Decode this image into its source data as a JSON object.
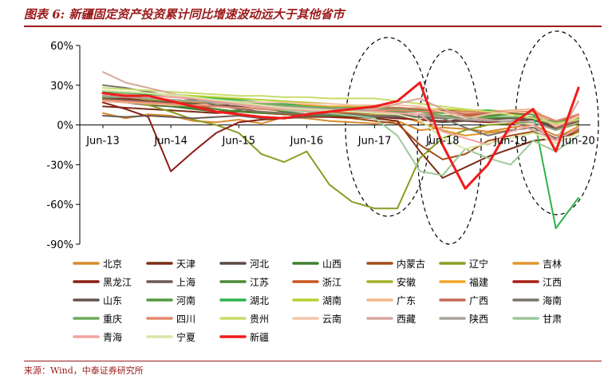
{
  "header": {
    "title": "图表 6:  新疆固定资产投资累计同比增速波动远大于其他省市"
  },
  "footer": {
    "source": "来源：Wind，中泰证券研究所"
  },
  "chart_data": {
    "type": "line",
    "title": "图表 6:  新疆固定资产投资累计同比增速波动远大于其他省市",
    "x_tick_labels": [
      "Jun-13",
      "Jun-14",
      "Jun-15",
      "Jun-16",
      "Jun-17",
      "Jun-18",
      "Jun-19",
      "Jun-20"
    ],
    "y_tick_labels": [
      "60%",
      "30%",
      "0%",
      "-30%",
      "-60%",
      "-90%"
    ],
    "ylim": [
      -90,
      60
    ],
    "y_unit": "%",
    "grid": false,
    "legend_position": "bottom",
    "annotations": [
      {
        "type": "dashed-ellipse",
        "around": "Jun-17"
      },
      {
        "type": "dashed-ellipse",
        "around": "Jun-18"
      },
      {
        "type": "dashed-ellipse",
        "around": "Jun-20"
      }
    ],
    "series": [
      {
        "name": "北京",
        "color": "#d88a2e",
        "values": [
          9,
          5,
          8,
          7,
          3,
          2,
          4,
          1,
          6,
          5,
          3,
          2,
          1,
          3,
          -4,
          -2,
          -3,
          -5,
          -2,
          0,
          -8,
          -4
        ]
      },
      {
        "name": "天津",
        "color": "#7b2d16",
        "values": [
          14,
          13,
          12,
          11,
          10,
          9,
          10,
          10,
          9,
          8,
          8,
          6,
          5,
          3,
          -20,
          -40,
          -32,
          -24,
          -18,
          -12,
          -10,
          -6
        ]
      },
      {
        "name": "河北",
        "color": "#5a4a42",
        "values": [
          18,
          17,
          15,
          14,
          13,
          12,
          10,
          9,
          8,
          8,
          7,
          6,
          6,
          5,
          4,
          2,
          5,
          6,
          5,
          4,
          -3,
          2
        ]
      },
      {
        "name": "山西",
        "color": "#3f7f2f",
        "values": [
          19,
          18,
          16,
          14,
          12,
          10,
          11,
          13,
          10,
          8,
          7,
          6,
          6,
          7,
          6,
          5,
          6,
          7,
          8,
          9,
          -3,
          6
        ]
      },
      {
        "name": "内蒙古",
        "color": "#a44d18",
        "values": [
          22,
          21,
          19,
          18,
          15,
          12,
          10,
          9,
          8,
          7,
          6,
          5,
          3,
          1,
          -15,
          -26,
          -22,
          -12,
          -8,
          -5,
          -10,
          -5
        ]
      },
      {
        "name": "辽宁",
        "color": "#8c9c22",
        "values": [
          20,
          18,
          15,
          10,
          4,
          0,
          -6,
          -22,
          -28,
          -20,
          -45,
          -58,
          -63,
          -63,
          -25,
          -10,
          -4,
          0,
          1,
          2,
          -4,
          1
        ]
      },
      {
        "name": "吉林",
        "color": "#e0952b",
        "values": [
          21,
          20,
          19,
          18,
          17,
          15,
          13,
          12,
          11,
          10,
          10,
          9,
          8,
          7,
          2,
          -4,
          -8,
          -6,
          -4,
          -2,
          -10,
          -1
        ]
      },
      {
        "name": "黑龙江",
        "color": "#8b1d14",
        "values": [
          17,
          12,
          6,
          -35,
          -20,
          -6,
          2,
          4,
          5,
          6,
          6,
          6,
          6,
          5,
          4,
          3,
          3,
          2,
          3,
          4,
          1,
          5
        ]
      },
      {
        "name": "上海",
        "color": "#6b5a52",
        "values": [
          7,
          6,
          7,
          6,
          5,
          6,
          7,
          5,
          5,
          6,
          7,
          7,
          6,
          6,
          6,
          6,
          6,
          5,
          5,
          6,
          2,
          8
        ]
      },
      {
        "name": "江苏",
        "color": "#4b8a37",
        "values": [
          20,
          19,
          17,
          15,
          13,
          12,
          10,
          9,
          9,
          8,
          7,
          7,
          7,
          7,
          6,
          5,
          5,
          5,
          5,
          4,
          0,
          3
        ]
      },
      {
        "name": "浙江",
        "color": "#c9571f",
        "values": [
          20,
          19,
          17,
          16,
          15,
          14,
          13,
          12,
          11,
          10,
          9,
          9,
          9,
          9,
          8,
          7,
          7,
          8,
          9,
          10,
          3,
          8
        ]
      },
      {
        "name": "安徽",
        "color": "#a2b127",
        "values": [
          22,
          21,
          19,
          18,
          16,
          14,
          13,
          12,
          12,
          11,
          11,
          12,
          12,
          11,
          11,
          10,
          10,
          9,
          9,
          8,
          2,
          6
        ]
      },
      {
        "name": "福建",
        "color": "#f0a52a",
        "values": [
          24,
          23,
          22,
          21,
          20,
          19,
          18,
          17,
          16,
          15,
          14,
          14,
          13,
          12,
          12,
          12,
          11,
          11,
          10,
          9,
          0,
          5
        ]
      },
      {
        "name": "江西",
        "color": "#a51f15",
        "values": [
          21,
          20,
          18,
          17,
          16,
          15,
          16,
          15,
          14,
          13,
          12,
          13,
          13,
          12,
          12,
          11,
          11,
          10,
          9,
          8,
          1,
          7
        ]
      },
      {
        "name": "山东",
        "color": "#62544b",
        "values": [
          20,
          19,
          18,
          17,
          16,
          15,
          14,
          14,
          13,
          12,
          11,
          10,
          9,
          8,
          6,
          2,
          3,
          4,
          5,
          4,
          -2,
          3
        ]
      },
      {
        "name": "河南",
        "color": "#53993f",
        "values": [
          22,
          21,
          20,
          19,
          18,
          17,
          16,
          16,
          15,
          14,
          13,
          12,
          11,
          10,
          10,
          9,
          9,
          8,
          8,
          8,
          2,
          5
        ]
      },
      {
        "name": "湖北",
        "color": "#2db24b",
        "values": [
          25,
          24,
          23,
          22,
          21,
          20,
          19,
          17,
          16,
          14,
          13,
          12,
          12,
          11,
          11,
          10,
          10,
          11,
          10,
          9,
          -78,
          -55
        ]
      },
      {
        "name": "湖南",
        "color": "#b7cf32",
        "values": [
          26,
          25,
          24,
          23,
          22,
          21,
          20,
          19,
          18,
          17,
          16,
          15,
          14,
          13,
          12,
          12,
          11,
          10,
          10,
          9,
          1,
          6
        ]
      },
      {
        "name": "广东",
        "color": "#f0b78a",
        "values": [
          18,
          17,
          16,
          15,
          15,
          16,
          16,
          15,
          13,
          12,
          11,
          10,
          10,
          12,
          13,
          10,
          9,
          10,
          11,
          12,
          0,
          7
        ]
      },
      {
        "name": "广西",
        "color": "#c46a5a",
        "values": [
          22,
          21,
          20,
          19,
          18,
          17,
          16,
          15,
          14,
          13,
          13,
          13,
          13,
          13,
          12,
          10,
          8,
          9,
          10,
          10,
          -2,
          4
        ]
      },
      {
        "name": "海南",
        "color": "#7a7569",
        "values": [
          30,
          28,
          25,
          22,
          19,
          15,
          12,
          10,
          9,
          8,
          8,
          8,
          7,
          7,
          6,
          5,
          -2,
          -8,
          -4,
          -2,
          -10,
          -3
        ]
      },
      {
        "name": "重庆",
        "color": "#6faa5a",
        "values": [
          21,
          21,
          20,
          19,
          18,
          17,
          17,
          16,
          15,
          14,
          13,
          13,
          12,
          12,
          10,
          7,
          6,
          6,
          6,
          6,
          2,
          4
        ]
      },
      {
        "name": "四川",
        "color": "#e6876f",
        "values": [
          19,
          18,
          17,
          16,
          15,
          14,
          13,
          12,
          12,
          12,
          12,
          12,
          11,
          11,
          10,
          10,
          10,
          10,
          10,
          10,
          3,
          8
        ]
      },
      {
        "name": "贵州",
        "color": "#c9dc6b",
        "values": [
          28,
          27,
          26,
          25,
          24,
          23,
          22,
          22,
          21,
          21,
          20,
          20,
          20,
          18,
          16,
          14,
          12,
          10,
          8,
          5,
          1,
          4
        ]
      },
      {
        "name": "云南",
        "color": "#f3c6a8",
        "values": [
          26,
          25,
          24,
          22,
          20,
          18,
          18,
          17,
          17,
          16,
          16,
          15,
          15,
          15,
          14,
          10,
          5,
          8,
          10,
          9,
          -1,
          6
        ]
      },
      {
        "name": "西藏",
        "color": "#d9a79f",
        "values": [
          40,
          32,
          28,
          24,
          20,
          17,
          15,
          13,
          12,
          11,
          10,
          11,
          12,
          16,
          20,
          12,
          6,
          4,
          2,
          -4,
          -12,
          18
        ]
      },
      {
        "name": "陕西",
        "color": "#a9a29a",
        "values": [
          22,
          21,
          20,
          19,
          18,
          17,
          16,
          15,
          14,
          13,
          12,
          12,
          10,
          9,
          8,
          6,
          4,
          3,
          3,
          2,
          -4,
          2
        ]
      },
      {
        "name": "甘肃",
        "color": "#9ec89a",
        "values": [
          24,
          23,
          22,
          21,
          20,
          19,
          18,
          14,
          11,
          10,
          9,
          7,
          5,
          -8,
          -35,
          -38,
          -18,
          -25,
          -30,
          -12,
          -20,
          -8
        ]
      },
      {
        "name": "青海",
        "color": "#f2a3a0",
        "values": [
          24,
          23,
          22,
          21,
          20,
          18,
          16,
          14,
          12,
          11,
          11,
          10,
          10,
          9,
          8,
          -5,
          -10,
          -15,
          -5,
          0,
          -12,
          -2
        ]
      },
      {
        "name": "宁夏",
        "color": "#d7e7a6",
        "values": [
          26,
          25,
          24,
          23,
          21,
          19,
          17,
          15,
          13,
          12,
          11,
          10,
          9,
          8,
          4,
          -10,
          -18,
          -14,
          -10,
          -6,
          -14,
          -6
        ]
      },
      {
        "name": "新疆",
        "color": "#f01b1b",
        "values": [
          24,
          22,
          22,
          18,
          14,
          10,
          8,
          6,
          5,
          8,
          10,
          12,
          14,
          18,
          32,
          -15,
          -48,
          -30,
          0,
          12,
          -20,
          28
        ]
      }
    ]
  }
}
